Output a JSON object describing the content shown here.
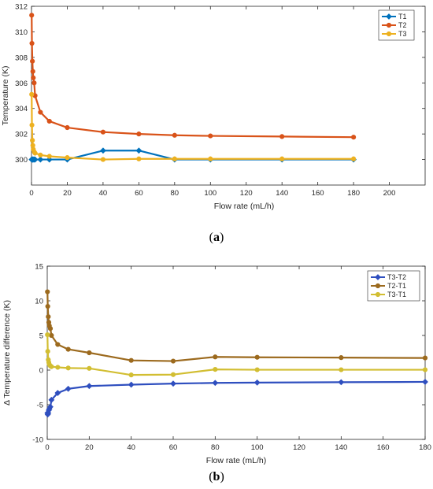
{
  "captions": {
    "a": "a",
    "b": "b"
  },
  "chart_data": [
    {
      "panel": "a",
      "type": "line",
      "xlabel": "Flow rate (mL/h)",
      "ylabel": "Temperature (K)",
      "xlim": [
        0,
        220
      ],
      "ylim": [
        298,
        312
      ],
      "xticks": [
        0,
        20,
        40,
        60,
        80,
        100,
        120,
        140,
        160,
        180,
        200
      ],
      "yticks": [
        300,
        302,
        304,
        306,
        308,
        310,
        312
      ],
      "grid": false,
      "legend_position": "top-right",
      "x": [
        0.1,
        0.25,
        0.5,
        0.75,
        1,
        1.5,
        2,
        5,
        10,
        20,
        40,
        60,
        80,
        100,
        140,
        180
      ],
      "series": [
        {
          "name": "T1",
          "color": "#0072BD",
          "marker": "diamond",
          "values": [
            300,
            300,
            300,
            300,
            300,
            300,
            300,
            300,
            300,
            300,
            300.7,
            300.7,
            300,
            300,
            300,
            300
          ]
        },
        {
          "name": "T2",
          "color": "#D95319",
          "marker": "circle",
          "values": [
            311.3,
            309.1,
            307.7,
            306.9,
            306.4,
            306,
            305,
            303.7,
            303,
            302.5,
            302.15,
            302,
            301.9,
            301.85,
            301.8,
            301.75
          ]
        },
        {
          "name": "T3",
          "color": "#EDB120",
          "marker": "circle",
          "values": [
            305.1,
            302.7,
            301.5,
            301.1,
            300.8,
            300.6,
            300.5,
            300.35,
            300.25,
            300.15,
            300,
            300.05,
            300.05,
            300.05,
            300.05,
            300.05
          ]
        }
      ]
    },
    {
      "panel": "b",
      "type": "line",
      "xlabel": "Flow rate (mL/h)",
      "ylabel": "Δ Temperature difference (K)",
      "xlim": [
        0,
        180
      ],
      "ylim": [
        -10,
        15
      ],
      "xticks": [
        0,
        20,
        40,
        60,
        80,
        100,
        120,
        140,
        160,
        180
      ],
      "yticks": [
        -10,
        -5,
        0,
        5,
        10,
        15
      ],
      "grid": false,
      "legend_position": "top-right",
      "x": [
        0.1,
        0.25,
        0.5,
        0.75,
        1,
        1.5,
        2,
        5,
        10,
        20,
        40,
        60,
        80,
        100,
        140,
        180
      ],
      "series": [
        {
          "name": "T3-T2",
          "color": "#2F4FBF",
          "marker": "diamond",
          "values": [
            -6.2,
            -6.4,
            -6.2,
            -5.8,
            -5.6,
            -5.3,
            -4.3,
            -3.3,
            -2.7,
            -2.3,
            -2.1,
            -1.95,
            -1.85,
            -1.8,
            -1.75,
            -1.7
          ]
        },
        {
          "name": "T2-T1",
          "color": "#9C6A1E",
          "marker": "circle",
          "values": [
            11.3,
            9.2,
            7.7,
            6.9,
            6.4,
            6.0,
            5.0,
            3.7,
            3.0,
            2.5,
            1.4,
            1.3,
            1.9,
            1.85,
            1.8,
            1.75
          ]
        },
        {
          "name": "T3-T1",
          "color": "#D2BE32",
          "marker": "circle",
          "values": [
            5.1,
            2.7,
            1.5,
            1.1,
            0.8,
            0.6,
            0.5,
            0.4,
            0.3,
            0.25,
            -0.7,
            -0.65,
            0.1,
            0.05,
            0.05,
            0.05
          ]
        }
      ]
    }
  ]
}
